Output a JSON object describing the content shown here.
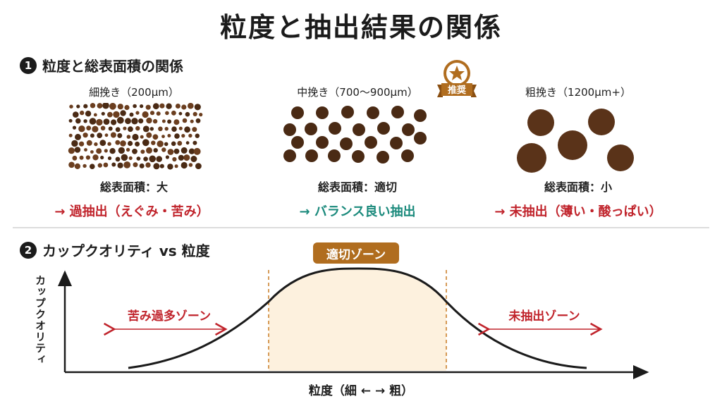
{
  "title": "粒度と抽出結果の関係",
  "section1": {
    "number": "1",
    "heading": "粒度と総表面積の関係",
    "recommend_badge": "推奨",
    "columns": [
      {
        "grind": "細挽き（200μm）",
        "surface_area": "総表面積：大",
        "result": "→ 過抽出（えぐみ・苦み）",
        "result_color": "#c0232b"
      },
      {
        "grind": "中挽き（700〜900μm）",
        "surface_area": "総表面積：適切",
        "result": "→ バランス良い抽出",
        "result_color": "#1b8a7c"
      },
      {
        "grind": "粗挽き（1200μm+）",
        "surface_area": "総表面積：小",
        "result": "→ 未抽出（薄い・酸っぱい）",
        "result_color": "#c0232b"
      }
    ]
  },
  "section2": {
    "number": "2",
    "heading": "カップクオリティ vs 粒度",
    "optimal_zone_label": "適切ゾーン",
    "left_zone_label": "苦み過多ゾーン",
    "right_zone_label": "未抽出ゾーン",
    "y_axis_label": "カップクオリティ",
    "x_axis_label": "粒度（細 ← → 粗）"
  },
  "colors": {
    "accent_brown": "#b06d1f",
    "zone_fill": "#fdf1de",
    "warning_red": "#c0232b",
    "good_teal": "#1b8a7c",
    "coffee_dark": "#4a2a14",
    "coffee_mid": "#5a3319"
  }
}
